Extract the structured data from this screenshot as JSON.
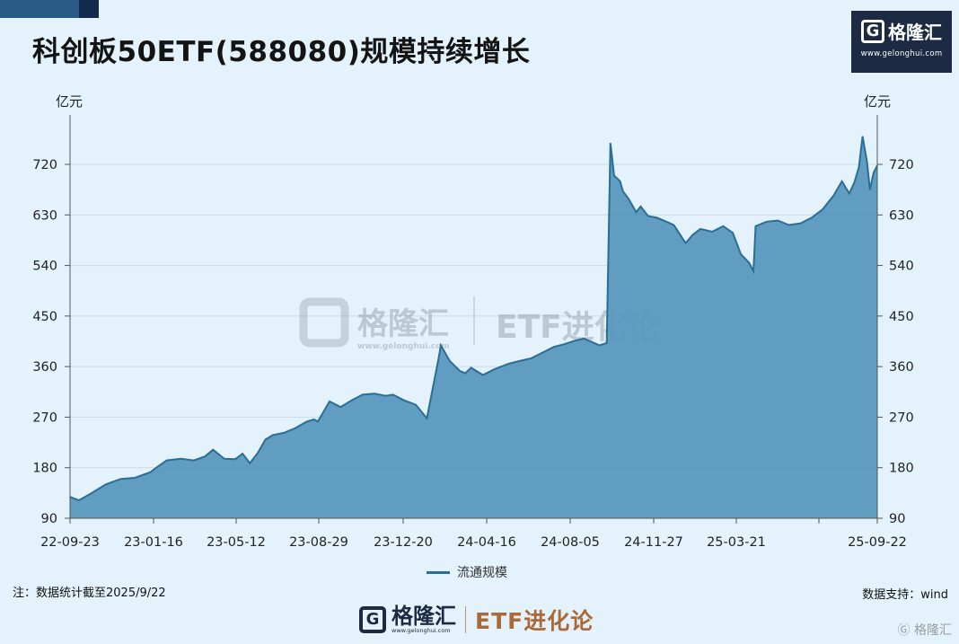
{
  "header": {
    "title": "科创板50ETF(588080)规模持续增长",
    "logo_brand": "格隆汇",
    "logo_url": "www.gelonghui.com"
  },
  "axis": {
    "unit_left": "亿元",
    "unit_right": "亿元"
  },
  "watermark": {
    "brand": "格隆汇",
    "url": "www.gelonghui.com",
    "column": "ETF进化论"
  },
  "footer": {
    "note": "注：数据统计截至2025/9/22",
    "source": "数据支持：wind",
    "brand": "格隆汇",
    "url": "www.gelonghui.com",
    "column": "ETF进化论",
    "corner_watermark": "格隆汇"
  },
  "colors": {
    "background": "#e3f2fb",
    "area_fill": "#5898bd",
    "line": "#2b6d97"
  },
  "chart_data": {
    "type": "area",
    "title": "科创板50ETF(588080)规模持续增长",
    "ylabel": "亿元",
    "ylim": [
      90,
      720
    ],
    "y_ticks": [
      90,
      180,
      270,
      360,
      450,
      540,
      630,
      720
    ],
    "x_tick_labels": [
      "22-09-23",
      "23-01-16",
      "23-05-12",
      "23-08-29",
      "23-12-20",
      "24-04-16",
      "24-08-05",
      "24-11-27",
      "25-03-21",
      "25-09-22"
    ],
    "legend": [
      "流通规模"
    ],
    "series": [
      {
        "name": "流通规模",
        "x": [
          "2022-09-23",
          "2022-10-05",
          "2022-10-20",
          "2022-11-10",
          "2022-12-01",
          "2022-12-20",
          "2023-01-10",
          "2023-01-20",
          "2023-02-01",
          "2023-02-20",
          "2023-03-10",
          "2023-03-25",
          "2023-04-05",
          "2023-04-20",
          "2023-05-05",
          "2023-05-15",
          "2023-05-25",
          "2023-06-05",
          "2023-06-15",
          "2023-06-25",
          "2023-07-10",
          "2023-07-25",
          "2023-08-10",
          "2023-08-20",
          "2023-08-25",
          "2023-09-10",
          "2023-09-25",
          "2023-10-10",
          "2023-10-25",
          "2023-11-10",
          "2023-11-25",
          "2023-12-05",
          "2023-12-20",
          "2024-01-05",
          "2024-01-20",
          "2024-01-30",
          "2024-02-05",
          "2024-02-08",
          "2024-02-20",
          "2024-03-05",
          "2024-03-12",
          "2024-03-20",
          "2024-04-05",
          "2024-04-20",
          "2024-05-10",
          "2024-05-25",
          "2024-06-10",
          "2024-06-25",
          "2024-07-10",
          "2024-07-25",
          "2024-08-05",
          "2024-08-20",
          "2024-09-10",
          "2024-09-20",
          "2024-09-25",
          "2024-09-30",
          "2024-10-08",
          "2024-10-12",
          "2024-10-20",
          "2024-10-30",
          "2024-11-05",
          "2024-11-15",
          "2024-11-27",
          "2024-12-10",
          "2024-12-20",
          "2025-01-05",
          "2025-01-15",
          "2025-01-25",
          "2025-02-10",
          "2025-02-25",
          "2025-03-10",
          "2025-03-21",
          "2025-04-01",
          "2025-04-07",
          "2025-04-10",
          "2025-04-25",
          "2025-05-10",
          "2025-05-25",
          "2025-06-10",
          "2025-06-25",
          "2025-07-10",
          "2025-07-25",
          "2025-08-05",
          "2025-08-15",
          "2025-08-22",
          "2025-08-28",
          "2025-09-02",
          "2025-09-08",
          "2025-09-12",
          "2025-09-17",
          "2025-09-22"
        ],
        "y": [
          128,
          122,
          133,
          150,
          160,
          162,
          172,
          182,
          193,
          196,
          193,
          200,
          212,
          196,
          195,
          205,
          188,
          207,
          230,
          238,
          242,
          250,
          262,
          266,
          262,
          298,
          288,
          300,
          310,
          312,
          308,
          310,
          300,
          292,
          268,
          335,
          375,
          398,
          370,
          352,
          348,
          358,
          345,
          355,
          365,
          370,
          375,
          385,
          395,
          400,
          405,
          410,
          398,
          402,
          758,
          700,
          690,
          672,
          658,
          635,
          645,
          628,
          625,
          618,
          612,
          580,
          595,
          605,
          600,
          610,
          598,
          560,
          545,
          530,
          610,
          618,
          620,
          612,
          615,
          625,
          640,
          665,
          690,
          668,
          688,
          715,
          770,
          725,
          675,
          705,
          718
        ]
      }
    ]
  }
}
